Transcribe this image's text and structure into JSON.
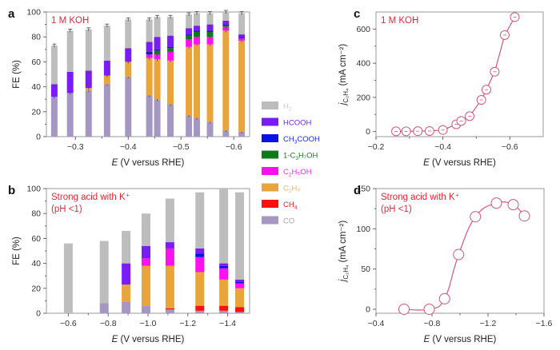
{
  "chart_data": [
    {
      "id": "a",
      "type": "bar",
      "stacked": true,
      "panel_label": "a",
      "condition": "1 M KOH",
      "xlabel_italic": "E",
      "xlabel": " (V versus RHE)",
      "ylabel": "FE (%)",
      "xlim": [
        -0.245,
        -0.63
      ],
      "ylim": [
        0,
        100
      ],
      "xticks": [
        -0.3,
        -0.4,
        -0.5,
        -0.6
      ],
      "xtick_labels": [
        "−0.3",
        "−0.4",
        "−0.5",
        "−0.6"
      ],
      "yticks": [
        0,
        20,
        40,
        60,
        80,
        100
      ],
      "x": [
        -0.26,
        -0.29,
        -0.325,
        -0.36,
        -0.4,
        -0.44,
        -0.455,
        -0.48,
        -0.515,
        -0.53,
        -0.555,
        -0.585,
        -0.615
      ],
      "series": [
        {
          "name": "CO",
          "values": [
            32,
            35,
            37,
            42,
            48,
            33,
            30,
            26,
            17,
            15,
            12,
            5,
            4
          ]
        },
        {
          "name": "CH4",
          "values": [
            0,
            0,
            0,
            0,
            0,
            0,
            0,
            0,
            0,
            0,
            0,
            0,
            0
          ]
        },
        {
          "name": "C2H4",
          "values": [
            0,
            0,
            2,
            7,
            12,
            30,
            32,
            35,
            55,
            59,
            62,
            80,
            73
          ]
        },
        {
          "name": "C2H5OH",
          "values": [
            0,
            0,
            0,
            0,
            0,
            3,
            4,
            7,
            6,
            6,
            6,
            3,
            2
          ]
        },
        {
          "name": "1-C3H7OH",
          "values": [
            0,
            0,
            0,
            0,
            0,
            0,
            3,
            3,
            3,
            4,
            4,
            1,
            0
          ]
        },
        {
          "name": "CH3COOH",
          "values": [
            0,
            0,
            0,
            0,
            0,
            2,
            1,
            1,
            1,
            1,
            1,
            1,
            1
          ]
        },
        {
          "name": "HCOOH",
          "values": [
            10,
            17,
            14,
            12,
            11,
            8,
            10,
            9,
            5,
            4,
            5,
            3,
            2
          ]
        },
        {
          "name": "H2",
          "values": [
            31,
            33,
            33,
            28,
            23,
            18,
            16,
            15,
            11,
            10,
            9,
            7,
            17
          ]
        }
      ]
    },
    {
      "id": "b",
      "type": "bar",
      "stacked": true,
      "panel_label": "b",
      "condition": "Strong acid with K⁺",
      "condition_line2": "(pH <1)",
      "xlabel_italic": "E",
      "xlabel": " (V versus RHE)",
      "ylabel": "FE (%)",
      "xlim": [
        -0.49,
        -1.51
      ],
      "ylim": [
        0,
        100
      ],
      "xticks": [
        -0.6,
        -0.8,
        -1.0,
        -1.2,
        -1.4
      ],
      "xtick_labels": [
        "−0.6",
        "−0.8",
        "−1.0",
        "−1.2",
        "−1.4"
      ],
      "yticks": [
        0,
        20,
        40,
        60,
        80,
        100
      ],
      "x": [
        -0.6,
        -0.78,
        -0.89,
        -0.99,
        -1.11,
        -1.26,
        -1.38,
        -1.46
      ],
      "series": [
        {
          "name": "CO",
          "values": [
            0,
            8,
            9,
            6,
            3,
            2,
            2,
            1
          ]
        },
        {
          "name": "CH4",
          "values": [
            0,
            0,
            0,
            0,
            1,
            4,
            4,
            4
          ]
        },
        {
          "name": "C2H4",
          "values": [
            0,
            0,
            14,
            32,
            34,
            27,
            21,
            15
          ]
        },
        {
          "name": "C2H5OH",
          "values": [
            0,
            0,
            0,
            6,
            14,
            12,
            9,
            4
          ]
        },
        {
          "name": "1-C3H7OH",
          "values": [
            0,
            0,
            0,
            0,
            0,
            0,
            0,
            0
          ]
        },
        {
          "name": "CH3COOH",
          "values": [
            0,
            0,
            0,
            0,
            0,
            3,
            2,
            1
          ]
        },
        {
          "name": "HCOOH",
          "values": [
            0,
            0,
            17,
            10,
            5,
            4,
            2,
            2
          ]
        },
        {
          "name": "H2",
          "values": [
            56,
            50,
            26,
            26,
            35,
            45,
            60,
            70
          ]
        }
      ]
    },
    {
      "id": "c",
      "type": "line",
      "panel_label": "c",
      "condition": "1 M KOH",
      "xlabel_italic": "E",
      "xlabel": " (V versus RHE)",
      "ylabel_main": "j",
      "ylabel_sub": "C₂H₄",
      "ylabel_unit": " (mA cm⁻²)",
      "xlim": [
        -0.2,
        -0.7
      ],
      "ylim": [
        -30,
        700
      ],
      "xticks": [
        -0.2,
        -0.4,
        -0.6
      ],
      "xtick_labels": [
        "−0.2",
        "−0.4",
        "−0.6"
      ],
      "yticks": [
        0,
        200,
        400,
        600
      ],
      "x": [
        -0.26,
        -0.29,
        -0.325,
        -0.36,
        -0.4,
        -0.44,
        -0.455,
        -0.48,
        -0.515,
        -0.53,
        -0.555,
        -0.585,
        -0.615
      ],
      "y": [
        1,
        1,
        2,
        3,
        9,
        42,
        62,
        90,
        185,
        245,
        350,
        565,
        670
      ]
    },
    {
      "id": "d",
      "type": "line",
      "panel_label": "d",
      "condition": "Strong acid with K⁺",
      "condition_line2": "(pH <1)",
      "xlabel_italic": "E",
      "xlabel": " (V versus RHE)",
      "ylabel_main": "j",
      "ylabel_sub": "C₂H₄",
      "ylabel_unit": " (mA cm⁻²)",
      "xlim": [
        -0.4,
        -1.6
      ],
      "ylim": [
        -5,
        150
      ],
      "xticks": [
        -0.4,
        -0.8,
        -1.2,
        -1.6
      ],
      "xtick_labels": [
        "−0.4",
        "−0.8",
        "−1.2",
        "−1.6"
      ],
      "yticks": [
        0,
        50,
        100,
        150
      ],
      "x": [
        -0.6,
        -0.78,
        -0.89,
        -0.99,
        -1.11,
        -1.26,
        -1.38,
        -1.46
      ],
      "y": [
        0,
        0,
        13,
        68,
        115,
        132,
        130,
        116
      ]
    }
  ],
  "legend": {
    "items": [
      {
        "name": "H2",
        "label": "H",
        "sub": "2",
        "tail": "",
        "color": "#bdbdbd",
        "text_color": "#c8c8c8"
      },
      {
        "name": "HCOOH",
        "label": "HCOOH",
        "sub": "",
        "tail": "",
        "color": "#7a1cf5",
        "text_color": "#7a1cf5"
      },
      {
        "name": "CH3COOH",
        "label": "CH",
        "sub": "3",
        "tail": "COOH",
        "color": "#0a12e8",
        "text_color": "#1a2ad8"
      },
      {
        "name": "1-C3H7OH",
        "label": "1-C",
        "sub": "3",
        "tail": "H₇OH",
        "color": "#0f7a1a",
        "text_color": "#1a7a24"
      },
      {
        "name": "C2H5OH",
        "label": "C",
        "sub": "2",
        "tail": "H₅OH",
        "color": "#ff10f0",
        "text_color": "#ff22ee"
      },
      {
        "name": "C2H4",
        "label": "C",
        "sub": "2",
        "tail": "H₄",
        "color": "#e9a43a",
        "text_color": "#e8b060"
      },
      {
        "name": "CH4",
        "label": "CH",
        "sub": "4",
        "tail": "",
        "color": "#ff1010",
        "text_color": "#e02020"
      },
      {
        "name": "CO",
        "label": "CO",
        "sub": "",
        "tail": "",
        "color": "#a597c2",
        "text_color": "#a9a0c4"
      }
    ]
  },
  "colors": {
    "line": "#d2577a",
    "condition_text": "#e0283a",
    "frame": "#9a9a9a"
  }
}
